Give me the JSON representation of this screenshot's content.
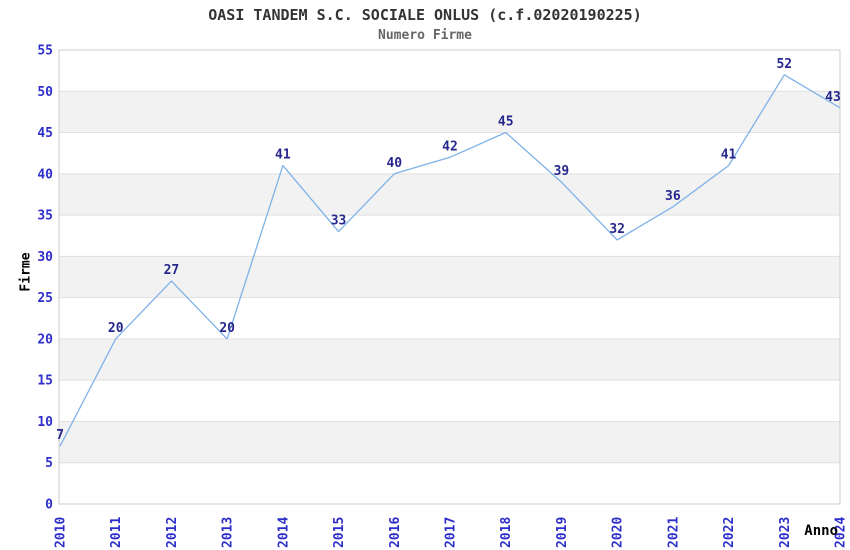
{
  "page": {
    "background": "#ffffff"
  },
  "chart_data": {
    "type": "line",
    "title": "OASI TANDEM S.C. SOCIALE ONLUS (c.f.02020190225)",
    "subtitle": "Numero Firme",
    "xlabel": "Anno",
    "ylabel": "Firme",
    "categories": [
      "2010",
      "2011",
      "2012",
      "2013",
      "2014",
      "2015",
      "2016",
      "2017",
      "2018",
      "2019",
      "2020",
      "2021",
      "2022",
      "2023",
      "2024"
    ],
    "values": [
      7,
      20,
      27,
      20,
      41,
      33,
      40,
      42,
      45,
      39,
      32,
      36,
      41,
      52,
      43
    ],
    "data_labels": [
      "7",
      "20",
      "27",
      "20",
      "41",
      "33",
      "40",
      "42",
      "45",
      "39",
      "32",
      "36",
      "41",
      "52",
      "43"
    ],
    "ylim": [
      0,
      55
    ],
    "yticks": [
      0,
      5,
      10,
      15,
      20,
      25,
      30,
      35,
      40,
      45,
      50,
      55
    ],
    "grid": true,
    "alternating_row_bands": true,
    "legend": "none",
    "markers": "none",
    "last_segment_end_value_rendered": 48,
    "colors": {
      "line": "#7fb2e8",
      "data_label": "#26268c",
      "tick_label": "#2e2ecc",
      "title": "#333333",
      "subtitle": "#666666",
      "axis_title": "#000000",
      "band": "#f2f2f2",
      "gridline": "#e0e0e0",
      "border": "#cccccc",
      "background": "#ffffff"
    }
  }
}
